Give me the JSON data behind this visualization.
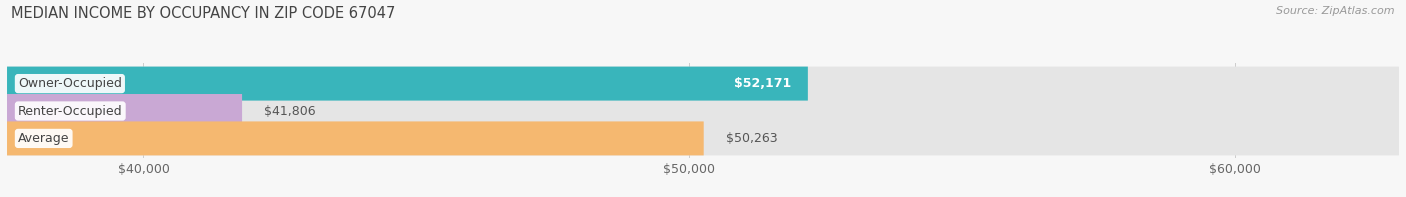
{
  "title": "MEDIAN INCOME BY OCCUPANCY IN ZIP CODE 67047",
  "source": "Source: ZipAtlas.com",
  "categories": [
    "Owner-Occupied",
    "Renter-Occupied",
    "Average"
  ],
  "values": [
    52171,
    41806,
    50263
  ],
  "bar_colors": [
    "#39b5bb",
    "#c9a8d4",
    "#f5b870"
  ],
  "bar_bg_color": "#e8e8e8",
  "label_values": [
    "$52,171",
    "$41,806",
    "$50,263"
  ],
  "label_inside": [
    true,
    false,
    false
  ],
  "x_ticks": [
    40000,
    50000,
    60000
  ],
  "x_tick_labels": [
    "$40,000",
    "$50,000",
    "$60,000"
  ],
  "x_min": 37500,
  "x_max": 63000,
  "title_fontsize": 10.5,
  "source_fontsize": 8,
  "bar_label_fontsize": 9,
  "category_fontsize": 9,
  "tick_fontsize": 9,
  "background_color": "#f7f7f7",
  "bar_bg_color_actual": "#e5e5e5",
  "bar_height": 0.62
}
